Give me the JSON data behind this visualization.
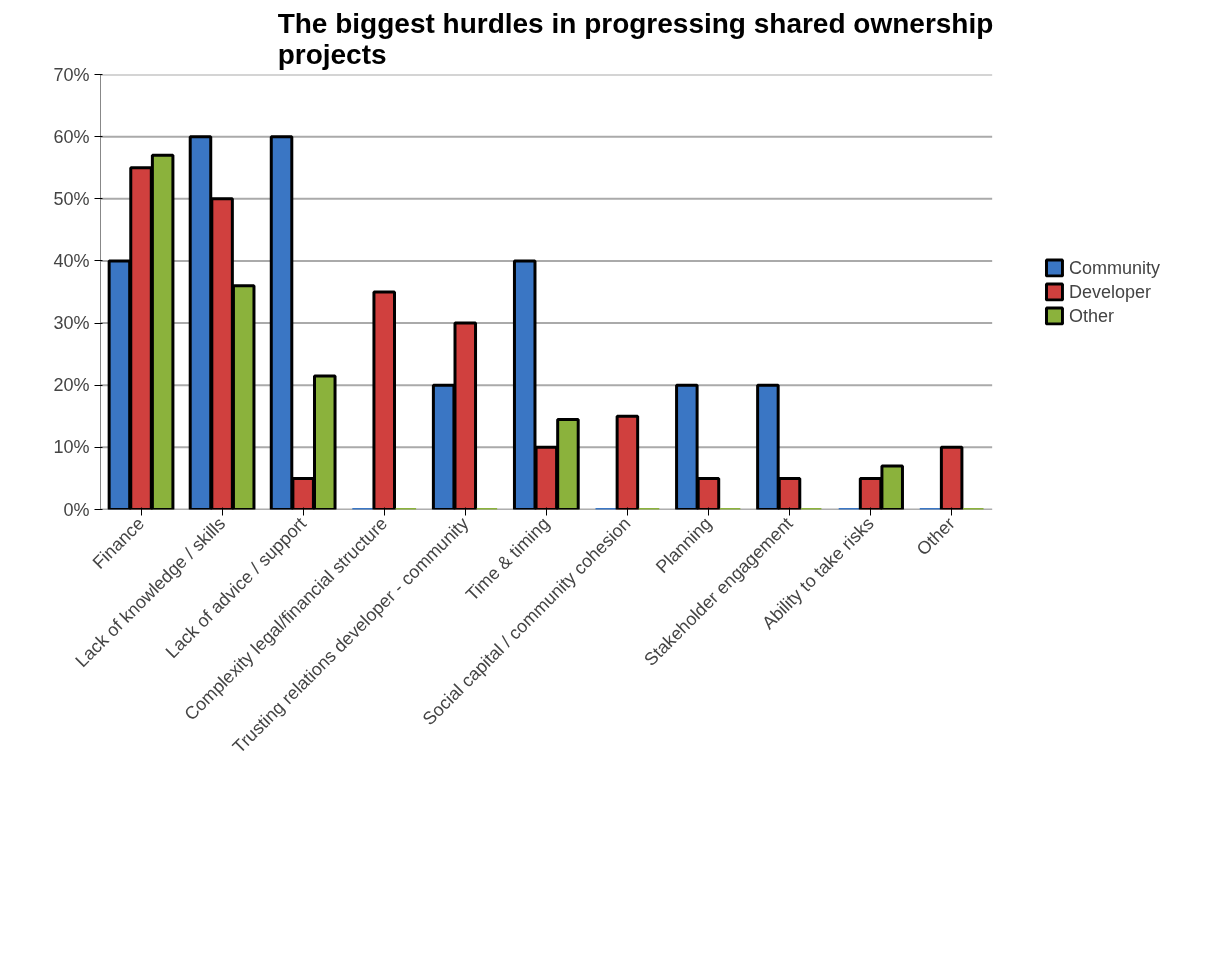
{
  "chart_data": {
    "type": "bar",
    "title": "The biggest hurdles in progressing shared ownership projects",
    "categories": [
      "Finance",
      "Lack of knowledge / skills",
      "Lack of advice / support",
      "Complexity legal/financial structure",
      "Trusting relations developer - community",
      "Time & timing",
      "Social capital / community cohesion",
      "Planning",
      "Stakeholder engagement",
      "Ability to take risks",
      "Other"
    ],
    "series": [
      {
        "name": "Community",
        "color": "#3a76c4",
        "values": [
          40,
          60,
          60,
          0,
          20,
          40,
          0,
          20,
          20,
          0,
          0
        ]
      },
      {
        "name": "Developer",
        "color": "#d0403e",
        "values": [
          55,
          50,
          5,
          35,
          30,
          10,
          15,
          5,
          5,
          5,
          10
        ]
      },
      {
        "name": "Other",
        "color": "#8bb23c",
        "values": [
          57,
          36,
          21.5,
          0,
          0,
          14.5,
          0,
          0,
          0,
          7,
          0
        ]
      }
    ],
    "ylim": [
      0,
      70
    ],
    "yticks": [
      {
        "value": 0,
        "label": "0%"
      },
      {
        "value": 10,
        "label": "10%"
      },
      {
        "value": 20,
        "label": "20%"
      },
      {
        "value": 30,
        "label": "30%"
      },
      {
        "value": 40,
        "label": "40%"
      },
      {
        "value": 50,
        "label": "50%"
      },
      {
        "value": 60,
        "label": "60%"
      },
      {
        "value": 70,
        "label": "70%"
      }
    ],
    "grid": "y",
    "legend": "right"
  }
}
